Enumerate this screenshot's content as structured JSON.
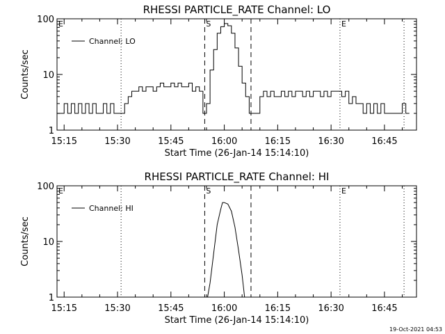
{
  "footer_timestamp": "19-Oct-2021 04:53",
  "chart_data": [
    {
      "type": "line",
      "title": "RHESSI PARTICLE_RATE Channel: LO",
      "xlabel": "Start Time (26-Jan-14 15:14:10)",
      "ylabel": "Counts/sec",
      "yscale": "log",
      "ylim": [
        1,
        100
      ],
      "xlim": [
        "15:13",
        "16:54"
      ],
      "x_ticks": [
        "15:15",
        "15:30",
        "15:45",
        "16:00",
        "16:15",
        "16:30",
        "16:45"
      ],
      "y_ticks": [
        "1",
        "10",
        "100"
      ],
      "legend": {
        "position": "top-left",
        "entries": [
          "Channel: LO"
        ]
      },
      "markers": [
        {
          "label": "E",
          "time": "15:13",
          "style": "none"
        },
        {
          "label": "",
          "time": "15:31",
          "style": "dotted"
        },
        {
          "label": "S",
          "time": "15:54.5",
          "style": "dashed"
        },
        {
          "label": "",
          "time": "16:07.5",
          "style": "dashed"
        },
        {
          "label": "E",
          "time": "16:32.5",
          "style": "dotted"
        },
        {
          "label": "",
          "time": "16:50.5",
          "style": "dotted"
        }
      ],
      "series": [
        {
          "name": "Channel: LO",
          "x": [
            "15:13",
            "15:14",
            "15:15",
            "15:16",
            "15:17",
            "15:18",
            "15:19",
            "15:20",
            "15:21",
            "15:22",
            "15:23",
            "15:24",
            "15:25",
            "15:26",
            "15:27",
            "15:28",
            "15:29",
            "15:30",
            "15:31",
            "15:32",
            "15:33",
            "15:34",
            "15:35",
            "15:36",
            "15:37",
            "15:38",
            "15:39",
            "15:40",
            "15:41",
            "15:42",
            "15:43",
            "15:44",
            "15:45",
            "15:46",
            "15:47",
            "15:48",
            "15:49",
            "15:50",
            "15:51",
            "15:52",
            "15:53",
            "15:54",
            "15:55",
            "15:56",
            "15:57",
            "15:58",
            "15:59",
            "16:00",
            "16:01",
            "16:02",
            "16:03",
            "16:04",
            "16:05",
            "16:06",
            "16:07",
            "16:08",
            "16:09",
            "16:10",
            "16:11",
            "16:12",
            "16:13",
            "16:14",
            "16:15",
            "16:16",
            "16:17",
            "16:18",
            "16:19",
            "16:20",
            "16:21",
            "16:22",
            "16:23",
            "16:24",
            "16:25",
            "16:26",
            "16:27",
            "16:28",
            "16:29",
            "16:30",
            "16:31",
            "16:32",
            "16:33",
            "16:34",
            "16:35",
            "16:36",
            "16:37",
            "16:38",
            "16:39",
            "16:40",
            "16:41",
            "16:42",
            "16:43",
            "16:44",
            "16:45",
            "16:46",
            "16:47",
            "16:48",
            "16:49",
            "16:50",
            "16:51"
          ],
          "y": [
            2,
            2,
            3,
            2,
            3,
            2,
            3,
            2,
            3,
            2,
            3,
            2,
            2,
            3,
            2,
            3,
            2,
            2,
            2,
            3,
            4,
            5,
            5,
            6,
            5,
            6,
            6,
            5,
            6,
            7,
            6,
            6,
            7,
            6,
            7,
            6,
            6,
            7,
            5,
            6,
            5,
            2,
            3,
            12,
            28,
            55,
            72,
            82,
            75,
            55,
            30,
            14,
            7,
            4,
            2,
            2,
            2,
            4,
            5,
            4,
            5,
            4,
            4,
            5,
            4,
            5,
            4,
            5,
            5,
            4,
            5,
            4,
            5,
            5,
            4,
            5,
            4,
            5,
            5,
            5,
            4,
            5,
            3,
            4,
            3,
            3,
            2,
            3,
            2,
            3,
            2,
            3,
            2,
            2,
            2,
            2,
            2,
            3,
            2
          ]
        }
      ]
    },
    {
      "type": "line",
      "title": "RHESSI PARTICLE_RATE Channel: HI",
      "xlabel": "Start Time (26-Jan-14 15:14:10)",
      "ylabel": "Counts/sec",
      "yscale": "log",
      "ylim": [
        1,
        100
      ],
      "xlim": [
        "15:13",
        "16:54"
      ],
      "x_ticks": [
        "15:15",
        "15:30",
        "15:45",
        "16:00",
        "16:15",
        "16:30",
        "16:45"
      ],
      "y_ticks": [
        "1",
        "10",
        "100"
      ],
      "legend": {
        "position": "top-left",
        "entries": [
          "Channel: HI"
        ]
      },
      "markers": [
        {
          "label": "E",
          "time": "15:13",
          "style": "none"
        },
        {
          "label": "",
          "time": "15:31",
          "style": "dotted"
        },
        {
          "label": "S",
          "time": "15:54.5",
          "style": "dashed"
        },
        {
          "label": "",
          "time": "16:07.5",
          "style": "dashed"
        },
        {
          "label": "E",
          "time": "16:32.5",
          "style": "dotted"
        },
        {
          "label": "",
          "time": "16:50.5",
          "style": "dotted"
        }
      ],
      "series": [
        {
          "name": "Channel: HI",
          "x": [
            "15:55.3",
            "15:56",
            "15:57",
            "15:58",
            "15:59",
            "15:59.5",
            "16:00",
            "16:01",
            "16:02",
            "16:03",
            "16:04",
            "16:05",
            "16:05.7"
          ],
          "y": [
            1,
            1.8,
            6,
            20,
            38,
            50,
            50,
            47,
            35,
            18,
            7,
            2.5,
            1
          ]
        }
      ]
    }
  ]
}
